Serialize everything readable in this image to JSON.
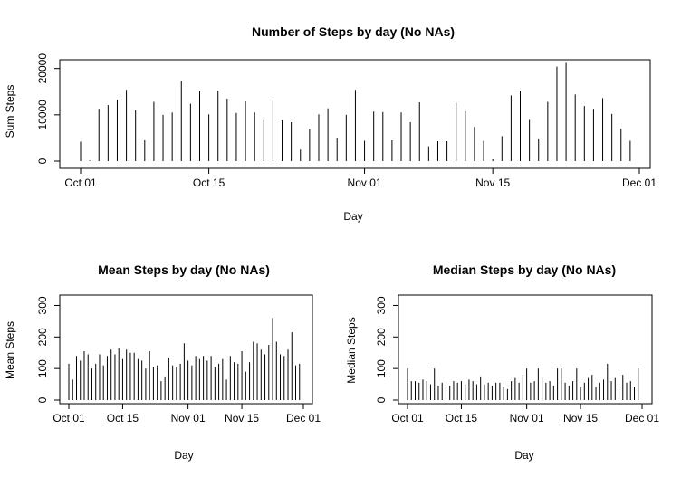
{
  "chart_data": [
    {
      "type": "bar",
      "title": "Number of Steps by day (No NAs)",
      "xlabel": "Day",
      "ylabel": "Sum Steps",
      "x_ticks": [
        "Oct 01",
        "Oct 15",
        "Nov 01",
        "Nov 15",
        "Dec 01"
      ],
      "x_tick_days": [
        0,
        14,
        31,
        45,
        61
      ],
      "y_ticks": [
        0,
        10000,
        20000
      ],
      "ylim": [
        0,
        21500
      ],
      "days": [
        0,
        1,
        2,
        3,
        4,
        5,
        6,
        7,
        8,
        9,
        10,
        11,
        12,
        13,
        14,
        15,
        16,
        17,
        18,
        19,
        20,
        21,
        22,
        23,
        24,
        25,
        26,
        27,
        28,
        29,
        30,
        31,
        32,
        33,
        34,
        35,
        36,
        37,
        38,
        39,
        40,
        41,
        42,
        43,
        44,
        45,
        46,
        47,
        48,
        49,
        50,
        51,
        52,
        53,
        54,
        55,
        56,
        57,
        58,
        59,
        60
      ],
      "values": [
        4200,
        150,
        11300,
        12100,
        13300,
        15400,
        11000,
        4500,
        12800,
        10000,
        10500,
        17300,
        12400,
        15100,
        10100,
        15200,
        13500,
        10400,
        12900,
        10500,
        8900,
        13300,
        8800,
        8400,
        2500,
        6900,
        10100,
        11400,
        5000,
        10000,
        15400,
        4400,
        10700,
        10600,
        4500,
        10500,
        8400,
        12700,
        3200,
        4300,
        4300,
        12600,
        10800,
        7400,
        4400,
        400,
        5400,
        14200,
        15100,
        8900,
        4700,
        12800,
        20400,
        21200,
        14400,
        11900,
        11300,
        13600,
        10200,
        7000,
        4400
      ]
    },
    {
      "type": "bar",
      "title": "Mean Steps by day (No NAs)",
      "xlabel": "Day",
      "ylabel": "Mean Steps",
      "x_ticks": [
        "Oct 01",
        "Oct 15",
        "Nov 01",
        "Nov 15",
        "Dec 01"
      ],
      "x_tick_days": [
        0,
        14,
        31,
        45,
        61
      ],
      "y_ticks": [
        0,
        100,
        200,
        300
      ],
      "ylim": [
        0,
        330
      ],
      "days": [
        0,
        1,
        2,
        3,
        4,
        5,
        6,
        7,
        8,
        9,
        10,
        11,
        12,
        13,
        14,
        15,
        16,
        17,
        18,
        19,
        20,
        21,
        22,
        23,
        24,
        25,
        26,
        27,
        28,
        29,
        30,
        31,
        32,
        33,
        34,
        35,
        36,
        37,
        38,
        39,
        40,
        41,
        42,
        43,
        44,
        45,
        46,
        47,
        48,
        49,
        50,
        51,
        52,
        53,
        54,
        55,
        56,
        57,
        58,
        59,
        60
      ],
      "values": [
        115,
        65,
        140,
        125,
        155,
        145,
        100,
        115,
        145,
        110,
        140,
        160,
        145,
        165,
        130,
        160,
        150,
        150,
        130,
        125,
        100,
        155,
        105,
        110,
        60,
        75,
        135,
        110,
        105,
        115,
        180,
        125,
        110,
        140,
        130,
        140,
        125,
        140,
        105,
        115,
        130,
        65,
        140,
        120,
        115,
        155,
        90,
        120,
        185,
        180,
        160,
        145,
        175,
        260,
        185,
        145,
        140,
        160,
        215,
        110,
        115
      ]
    },
    {
      "type": "bar",
      "title": "Median Steps by day (No NAs)",
      "xlabel": "Day",
      "ylabel": "Median Steps",
      "x_ticks": [
        "Oct 01",
        "Oct 15",
        "Nov 01",
        "Nov 15",
        "Dec 01"
      ],
      "x_tick_days": [
        0,
        14,
        31,
        45,
        61
      ],
      "y_ticks": [
        0,
        100,
        200,
        300
      ],
      "ylim": [
        0,
        330
      ],
      "days": [
        0,
        1,
        2,
        3,
        4,
        5,
        6,
        7,
        8,
        9,
        10,
        11,
        12,
        13,
        14,
        15,
        16,
        17,
        18,
        19,
        20,
        21,
        22,
        23,
        24,
        25,
        26,
        27,
        28,
        29,
        30,
        31,
        32,
        33,
        34,
        35,
        36,
        37,
        38,
        39,
        40,
        41,
        42,
        43,
        44,
        45,
        46,
        47,
        48,
        49,
        50,
        51,
        52,
        53,
        54,
        55,
        56,
        57,
        58,
        59,
        60
      ],
      "values": [
        100,
        60,
        60,
        55,
        65,
        60,
        50,
        100,
        45,
        55,
        50,
        45,
        60,
        55,
        60,
        50,
        65,
        60,
        50,
        75,
        50,
        55,
        45,
        55,
        55,
        40,
        35,
        60,
        70,
        55,
        80,
        100,
        55,
        60,
        100,
        70,
        55,
        60,
        45,
        100,
        100,
        55,
        45,
        60,
        100,
        40,
        55,
        70,
        80,
        40,
        55,
        65,
        115,
        60,
        70,
        40,
        80,
        55,
        60,
        40,
        100
      ]
    }
  ]
}
